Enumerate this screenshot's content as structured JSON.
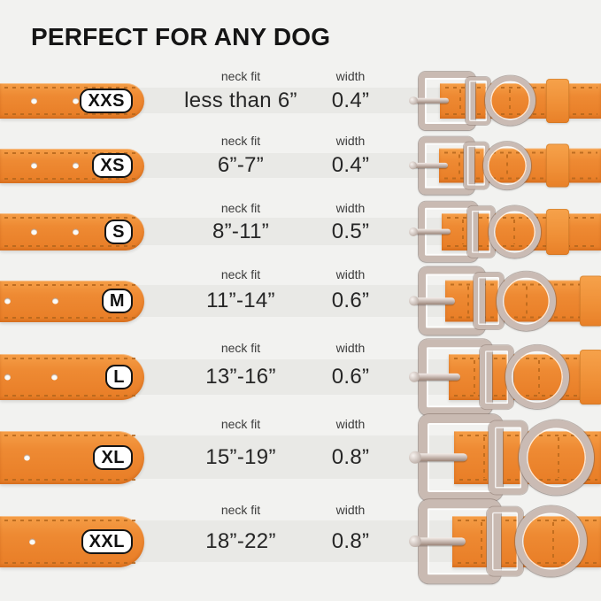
{
  "title": "PERFECT FOR ANY DOG",
  "columns": {
    "neck_fit": "neck fit",
    "width": "width"
  },
  "colors": {
    "background": "#f2f2f0",
    "row_band": "#e9e9e6",
    "collar_orange": "#ee8a33",
    "stitch_orange": "#b4661c",
    "metal_silver": "#c9bab2",
    "badge_background": "#ffffff",
    "badge_border": "#141414",
    "text": "#262626"
  },
  "rows": [
    {
      "size": "XXS",
      "neck_fit": "less than 6”",
      "width": "0.4”"
    },
    {
      "size": "XS",
      "neck_fit": "6”-7”",
      "width": "0.4”"
    },
    {
      "size": "S",
      "neck_fit": "8”-11”",
      "width": "0.5”"
    },
    {
      "size": "M",
      "neck_fit": "11”-14”",
      "width": "0.6”"
    },
    {
      "size": "L",
      "neck_fit": "13”-16”",
      "width": "0.6”"
    },
    {
      "size": "XL",
      "neck_fit": "15”-19”",
      "width": "0.8”"
    },
    {
      "size": "XXL",
      "neck_fit": "18”-22”",
      "width": "0.8”"
    }
  ]
}
